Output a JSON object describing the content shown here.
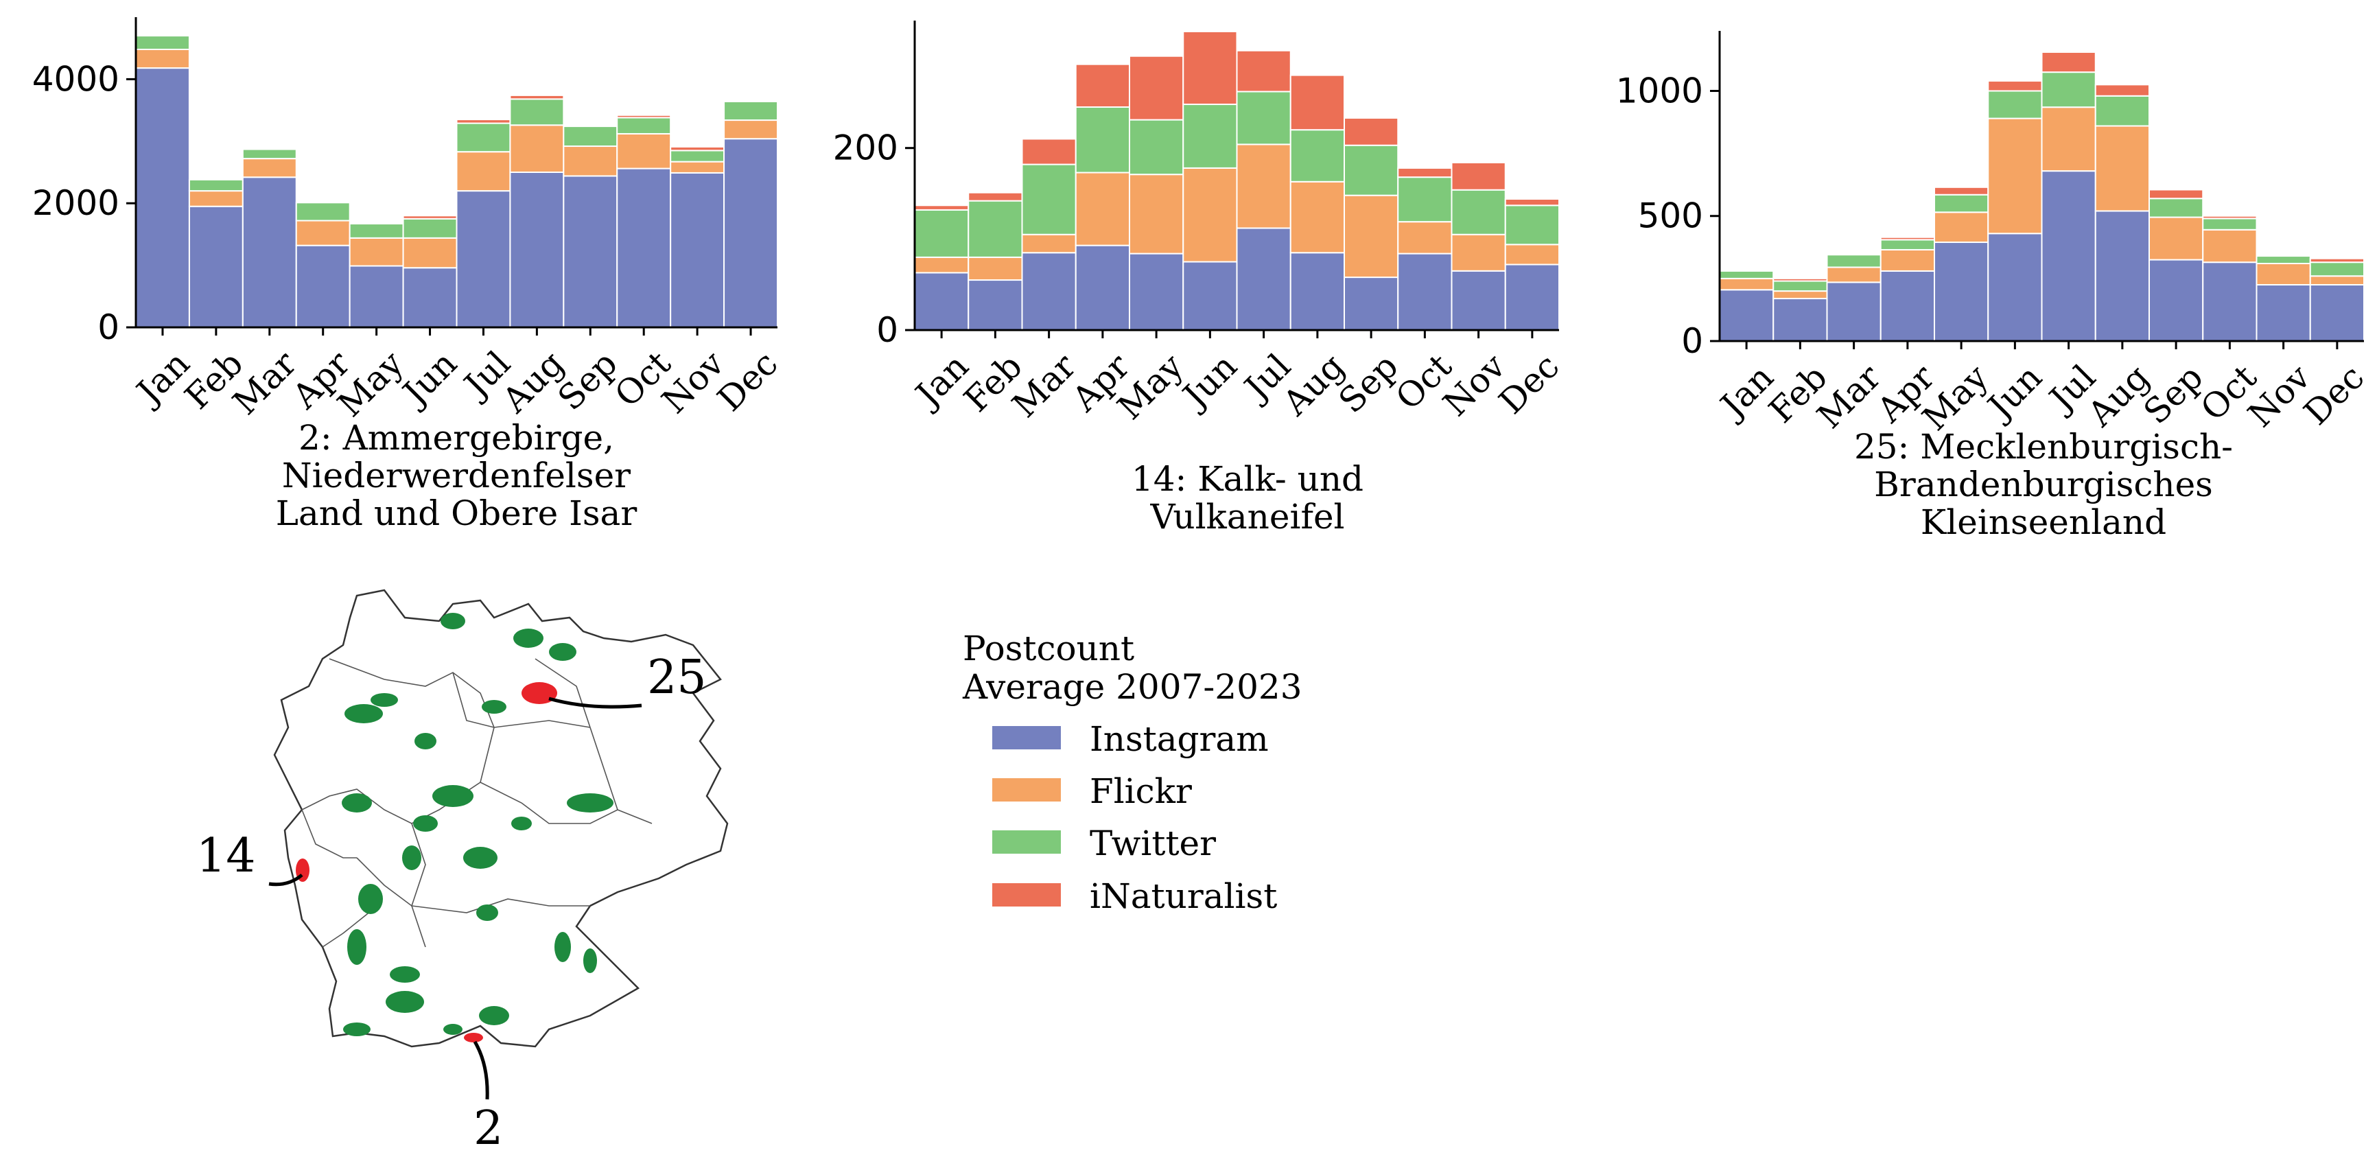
{
  "colors": {
    "Instagram": "#7480bf",
    "Flickr": "#f5a463",
    "Twitter": "#7ec97a",
    "iNaturalist": "#ec6f55",
    "map_park": "#1e8a3e",
    "map_highlight": "#e8242a",
    "map_outline": "#333333"
  },
  "legend": {
    "title_line1": "Postcount",
    "title_line2": "Average 2007-2023",
    "items": [
      "Instagram",
      "Flickr",
      "Twitter",
      "iNaturalist"
    ]
  },
  "chart_data": [
    {
      "type": "bar",
      "stacked": true,
      "title_lines": [
        "2: Ammergebirge,",
        "Niederwerdenfelser",
        "Land und Obere Isar"
      ],
      "categories": [
        "Jan",
        "Feb",
        "Mar",
        "Apr",
        "May",
        "Jun",
        "Jul",
        "Aug",
        "Sep",
        "Oct",
        "Nov",
        "Dec"
      ],
      "ylim": [
        0,
        5000
      ],
      "yticks": [
        0,
        2000,
        4000
      ],
      "ytick_labels": [
        "0",
        "2000",
        "4000"
      ],
      "series": [
        {
          "name": "Instagram",
          "values": [
            4180,
            1950,
            2420,
            1320,
            990,
            960,
            2200,
            2500,
            2440,
            2560,
            2490,
            3040
          ]
        },
        {
          "name": "Flickr",
          "values": [
            300,
            250,
            300,
            400,
            450,
            480,
            630,
            760,
            480,
            560,
            180,
            300
          ]
        },
        {
          "name": "Twitter",
          "values": [
            220,
            180,
            150,
            290,
            230,
            310,
            460,
            420,
            320,
            260,
            180,
            300
          ]
        },
        {
          "name": "iNaturalist",
          "values": [
            0,
            0,
            0,
            0,
            0,
            50,
            60,
            60,
            0,
            40,
            60,
            0
          ]
        }
      ]
    },
    {
      "type": "bar",
      "stacked": true,
      "title_lines": [
        "14: Kalk- und",
        "Vulkaneifel"
      ],
      "categories": [
        "Jan",
        "Feb",
        "Mar",
        "Apr",
        "May",
        "Jun",
        "Jul",
        "Aug",
        "Sep",
        "Oct",
        "Nov",
        "Dec"
      ],
      "ylim": [
        0,
        340
      ],
      "yticks": [
        0,
        200
      ],
      "ytick_labels": [
        "0",
        "200"
      ],
      "series": [
        {
          "name": "Instagram",
          "values": [
            63,
            55,
            85,
            93,
            84,
            75,
            112,
            85,
            58,
            84,
            65,
            72
          ]
        },
        {
          "name": "Flickr",
          "values": [
            17,
            25,
            20,
            80,
            87,
            103,
            92,
            78,
            90,
            35,
            40,
            22
          ]
        },
        {
          "name": "Twitter",
          "values": [
            52,
            62,
            77,
            72,
            60,
            70,
            58,
            57,
            55,
            49,
            49,
            43
          ]
        },
        {
          "name": "iNaturalist",
          "values": [
            5,
            9,
            28,
            47,
            70,
            80,
            45,
            60,
            30,
            10,
            30,
            7
          ]
        }
      ]
    },
    {
      "type": "bar",
      "stacked": true,
      "title_lines": [
        "25: Mecklenburgisch-",
        "Brandenburgisches",
        "Kleinseenland"
      ],
      "categories": [
        "Jan",
        "Feb",
        "Mar",
        "Apr",
        "May",
        "Jun",
        "Jul",
        "Aug",
        "Sep",
        "Oct",
        "Nov",
        "Dec"
      ],
      "ylim": [
        0,
        1240
      ],
      "yticks": [
        0,
        500,
        1000
      ],
      "ytick_labels": [
        "0",
        "500",
        "1000"
      ],
      "series": [
        {
          "name": "Instagram",
          "values": [
            205,
            170,
            235,
            280,
            395,
            430,
            680,
            520,
            325,
            315,
            225,
            225
          ]
        },
        {
          "name": "Flickr",
          "values": [
            45,
            30,
            60,
            85,
            120,
            460,
            255,
            340,
            170,
            130,
            85,
            35
          ]
        },
        {
          "name": "Twitter",
          "values": [
            30,
            40,
            50,
            40,
            70,
            110,
            140,
            120,
            75,
            45,
            30,
            55
          ]
        },
        {
          "name": "iNaturalist",
          "values": [
            0,
            10,
            0,
            10,
            30,
            40,
            80,
            45,
            35,
            10,
            0,
            15
          ]
        }
      ]
    }
  ],
  "map": {
    "labels": [
      "25",
      "14",
      "2"
    ]
  }
}
